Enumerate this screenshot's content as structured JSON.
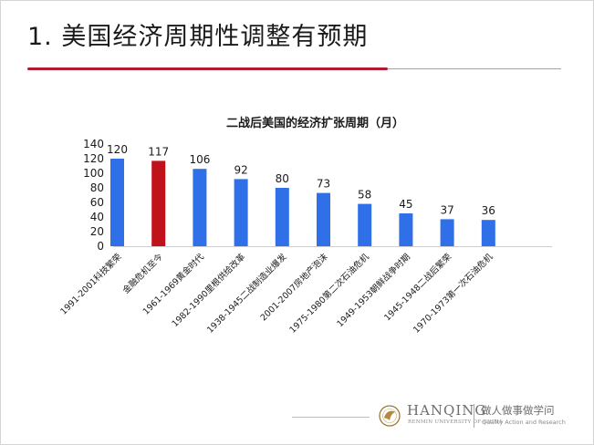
{
  "slide": {
    "title": "1. 美国经济周期性调整有预期"
  },
  "colors": {
    "accent_red": "#b01c2e",
    "bar_blue": "#2f6fe8",
    "bar_highlight": "#c0121a"
  },
  "chart_data": {
    "type": "bar",
    "title": "二战后美国的经济扩张周期（月）",
    "xlabel": "",
    "ylabel": "",
    "ylim": [
      0,
      140
    ],
    "yticks": [
      0,
      20,
      40,
      60,
      80,
      100,
      120,
      140
    ],
    "grid": false,
    "legend": "none",
    "categories": [
      "1991-2001科技繁荣",
      "金融危机至今",
      "1961-1969黄金时代",
      "1982-1990里根供给改革",
      "1938-1945二战制造业爆发",
      "2001-2007房地产泡沫",
      "1975-1980第二次石油危机",
      "1949-1953朝鲜战争时期",
      "1945-1948二战后繁荣",
      "1970-1973第一次石油危机"
    ],
    "values": [
      120,
      117,
      106,
      92,
      80,
      73,
      58,
      45,
      37,
      36
    ],
    "highlight_index": 1,
    "data_labels": [
      "120",
      "117",
      "106",
      "92",
      "80",
      "73",
      "58",
      "45",
      "37",
      "36"
    ]
  },
  "footer": {
    "brand": "HANQING",
    "university": "RENMIN UNIVERSITY OF CHINA",
    "motto": "做人做事做学问",
    "tagline": "Quality Action and Research",
    "logo_icon": "hanqing-emblem-icon"
  }
}
